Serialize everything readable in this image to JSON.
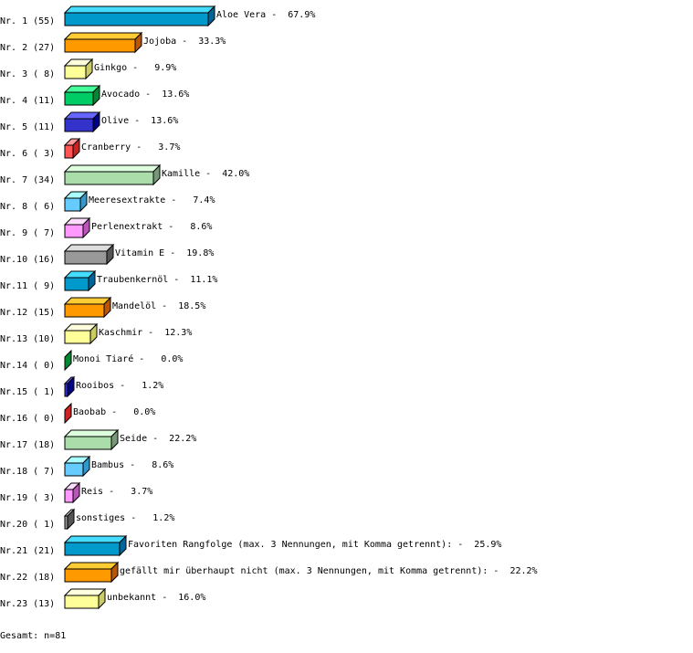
{
  "chart_data": {
    "type": "bar",
    "orientation": "horizontal",
    "style": "3d",
    "categories": [
      "Nr. 1",
      "Nr. 2",
      "Nr. 3",
      "Nr. 4",
      "Nr. 5",
      "Nr. 6",
      "Nr. 7",
      "Nr. 8",
      "Nr. 9",
      "Nr.10",
      "Nr.11",
      "Nr.12",
      "Nr.13",
      "Nr.14",
      "Nr.15",
      "Nr.16",
      "Nr.17",
      "Nr.18",
      "Nr.19",
      "Nr.20",
      "Nr.21",
      "Nr.22",
      "Nr.23"
    ],
    "counts": [
      55,
      27,
      8,
      11,
      11,
      3,
      34,
      6,
      7,
      16,
      9,
      15,
      10,
      0,
      1,
      0,
      18,
      7,
      3,
      1,
      21,
      18,
      13
    ],
    "labels": [
      "Aloe Vera",
      "Jojoba",
      "Ginkgo",
      "Avocado",
      "Olive",
      "Cranberry",
      "Kamille",
      "Meeresextrakte",
      "Perlenextrakt",
      "Vitamin E",
      "Traubenkernöl",
      "Mandelöl",
      "Kaschmir",
      "Monoi Tiaré",
      "Rooibos",
      "Baobab",
      "Seide",
      "Bambus",
      "Reis",
      "sonstiges",
      "Favoriten Rangfolge (max. 3 Nennungen, mit Komma getrennt):",
      "gefällt mir überhaupt nicht (max. 3 Nennungen, mit Komma getrennt):",
      "unbekannt"
    ],
    "values": [
      67.9,
      33.3,
      9.9,
      13.6,
      13.6,
      3.7,
      42.0,
      7.4,
      8.6,
      19.8,
      11.1,
      18.5,
      12.3,
      0.0,
      1.2,
      0.0,
      22.2,
      8.6,
      3.7,
      1.2,
      25.9,
      22.2,
      16.0
    ],
    "unit": "%",
    "grid": false,
    "legend": "none",
    "palette": [
      {
        "front": "#0099cc",
        "top": "#44ddff",
        "side": "#006699"
      },
      {
        "front": "#ff9900",
        "top": "#ffcc33",
        "side": "#bb5500"
      },
      {
        "front": "#ffff99",
        "top": "#ffffdd",
        "side": "#cccc66"
      },
      {
        "front": "#00cc66",
        "top": "#44ff99",
        "side": "#008833"
      },
      {
        "front": "#3333cc",
        "top": "#6666ff",
        "side": "#000088"
      },
      {
        "front": "#ff5555",
        "top": "#ff9999",
        "side": "#cc2222"
      },
      {
        "front": "#aaddaa",
        "top": "#ddffdd",
        "side": "#779977"
      },
      {
        "front": "#66ccff",
        "top": "#aaffff",
        "side": "#3399cc"
      },
      {
        "front": "#ff99ff",
        "top": "#ffddff",
        "side": "#bb55bb"
      },
      {
        "front": "#999999",
        "top": "#dddddd",
        "side": "#555555"
      }
    ]
  },
  "footer": "Gesamt: n=81"
}
